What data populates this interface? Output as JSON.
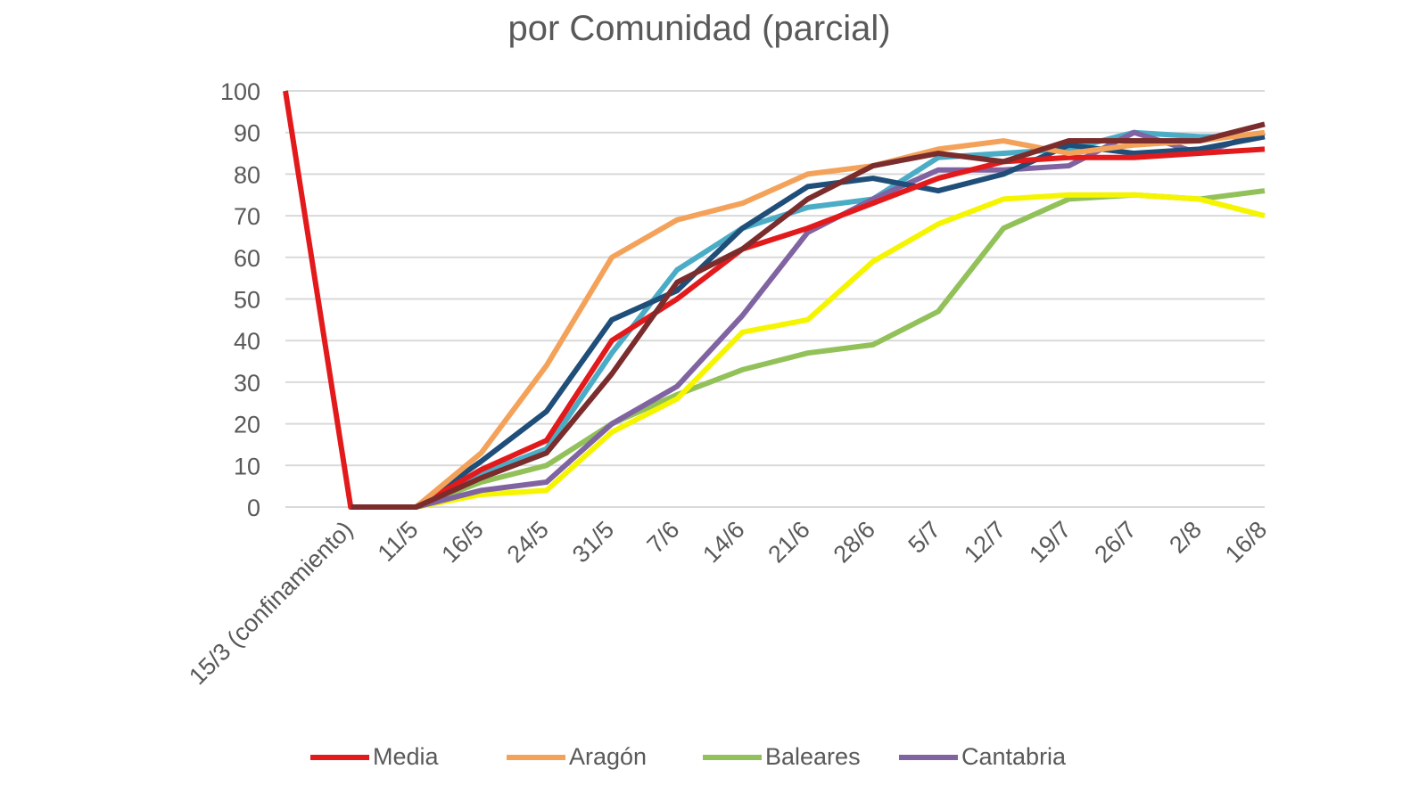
{
  "chart_data": {
    "type": "line",
    "title": "por Comunidad (parcial)",
    "xlabel": "",
    "ylabel": "",
    "ylim": [
      0,
      100
    ],
    "yticks": [
      "0",
      "10",
      "20",
      "30",
      "40",
      "50",
      "60",
      "70",
      "80",
      "90",
      "100"
    ],
    "grid": true,
    "legend_position": "bottom",
    "categories": [
      "",
      "15/3 (confinamiento)",
      "11/5",
      "16/5",
      "24/5",
      "31/5",
      "7/6",
      "14/6",
      "21/6",
      "28/6",
      "5/7",
      "12/7",
      "19/7",
      "26/7",
      "2/8",
      "16/8"
    ],
    "series": [
      {
        "name": "Media",
        "color": "#e31a1c",
        "legend": true,
        "values": [
          100,
          0,
          0,
          9,
          16,
          40,
          50,
          62,
          67,
          73,
          79,
          83,
          84,
          84,
          85,
          86
        ]
      },
      {
        "name": "Aragón",
        "color": "#f4a259",
        "legend": true,
        "values": [
          null,
          0,
          0,
          13,
          34,
          60,
          69,
          73,
          80,
          82,
          86,
          88,
          85,
          87,
          88,
          90
        ]
      },
      {
        "name": "Baleares",
        "color": "#92c15a",
        "legend": true,
        "values": [
          null,
          0,
          0,
          6,
          10,
          20,
          27,
          33,
          37,
          39,
          47,
          67,
          74,
          75,
          74,
          76
        ]
      },
      {
        "name": "Cantabria",
        "color": "#8064a2",
        "legend": true,
        "values": [
          null,
          0,
          0,
          4,
          6,
          20,
          29,
          46,
          66,
          74,
          81,
          81,
          82,
          90,
          85,
          90
        ]
      },
      {
        "name": "",
        "color": "#4bacc6",
        "legend": false,
        "values": [
          null,
          0,
          0,
          8,
          14,
          37,
          57,
          67,
          72,
          74,
          84,
          85,
          86,
          90,
          89,
          89
        ]
      },
      {
        "name": "",
        "color": "#f5f500",
        "legend": false,
        "values": [
          null,
          0,
          0,
          3,
          4,
          18,
          26,
          42,
          45,
          59,
          68,
          74,
          75,
          75,
          74,
          70
        ]
      },
      {
        "name": "",
        "color": "#1f4e79",
        "legend": false,
        "values": [
          null,
          0,
          0,
          11,
          23,
          45,
          52,
          67,
          77,
          79,
          76,
          80,
          87,
          85,
          86,
          89
        ]
      },
      {
        "name": "",
        "color": "#7b2c2c",
        "legend": false,
        "values": [
          null,
          0,
          0,
          7,
          13,
          32,
          54,
          62,
          74,
          82,
          85,
          83,
          88,
          88,
          88,
          92
        ]
      }
    ]
  }
}
